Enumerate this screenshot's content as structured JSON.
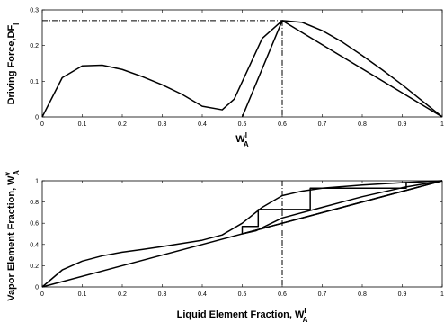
{
  "chart_data": [
    {
      "type": "line",
      "title": "",
      "xlabel": "W",
      "xlabel_sup": "I",
      "xlabel_sub": "A",
      "ylabel": "Driving Force,DF",
      "ylabel_sub": "I",
      "xlim": [
        0,
        1
      ],
      "ylim": [
        0,
        0.3
      ],
      "xticks": [
        0,
        0.1,
        0.2,
        0.3,
        0.4,
        0.5,
        0.6,
        0.7,
        0.8,
        0.9,
        1
      ],
      "yticks": [
        0,
        0.1,
        0.2,
        0.3
      ],
      "grid": false,
      "line_color": "#000000",
      "series": [
        {
          "x": [
            0,
            0.05,
            0.1,
            0.15,
            0.2,
            0.25,
            0.3,
            0.35,
            0.4,
            0.45,
            0.48,
            0.55,
            0.6,
            0.65,
            0.7,
            0.75,
            0.8,
            0.85,
            0.9,
            0.95,
            1
          ],
          "y": [
            0,
            0.11,
            0.143,
            0.145,
            0.133,
            0.113,
            0.09,
            0.063,
            0.03,
            0.02,
            0.05,
            0.22,
            0.27,
            0.265,
            0.242,
            0.21,
            0.172,
            0.132,
            0.09,
            0.045,
            0
          ]
        },
        {
          "x": [
            0.5,
            0.6,
            1
          ],
          "y": [
            0,
            0.27,
            0
          ]
        }
      ],
      "reference_lines": {
        "x": 0.6,
        "y": 0.27,
        "style": "dash-dot"
      }
    },
    {
      "type": "line",
      "title": "",
      "xlabel": "Liquid Element Fraction, W",
      "xlabel_sup": "I",
      "xlabel_sub": "A",
      "ylabel": "Vapor Element Fraction, W",
      "ylabel_sup": "v",
      "ylabel_sub": "A",
      "xlim": [
        0,
        1
      ],
      "ylim": [
        0,
        1
      ],
      "xticks": [
        0,
        0.1,
        0.2,
        0.3,
        0.4,
        0.5,
        0.6,
        0.7,
        0.8,
        0.9,
        1
      ],
      "yticks": [
        0,
        0.2,
        0.4,
        0.6,
        0.8,
        1
      ],
      "grid": false,
      "line_color": "#000000",
      "series": [
        {
          "x": [
            0,
            0.05,
            0.1,
            0.15,
            0.2,
            0.25,
            0.3,
            0.35,
            0.4,
            0.45,
            0.5,
            0.55,
            0.6,
            0.65,
            0.7,
            0.8,
            0.9,
            1
          ],
          "y": [
            0,
            0.16,
            0.243,
            0.293,
            0.327,
            0.353,
            0.38,
            0.41,
            0.44,
            0.49,
            0.6,
            0.75,
            0.86,
            0.903,
            0.93,
            0.96,
            0.982,
            1
          ]
        },
        {
          "x": [
            0,
            1
          ],
          "y": [
            0,
            1
          ]
        },
        {
          "x": [
            0.5,
            0.6,
            1
          ],
          "y": [
            0.5,
            0.6,
            1
          ]
        },
        {
          "x": [
            0.5,
            0.535,
            0.6,
            0.7,
            0.8,
            0.9,
            1
          ],
          "y": [
            0.5,
            0.53,
            0.65,
            0.75,
            0.85,
            0.935,
            1
          ]
        },
        {
          "x": [
            0.5,
            0.5,
            0.54,
            0.54,
            0.67,
            0.67,
            0.91,
            0.91
          ],
          "y": [
            0.5,
            0.57,
            0.57,
            0.73,
            0.73,
            0.93,
            0.93,
            0.99
          ]
        }
      ],
      "reference_lines": {
        "x": 0.6,
        "style": "dash-dot"
      }
    }
  ]
}
